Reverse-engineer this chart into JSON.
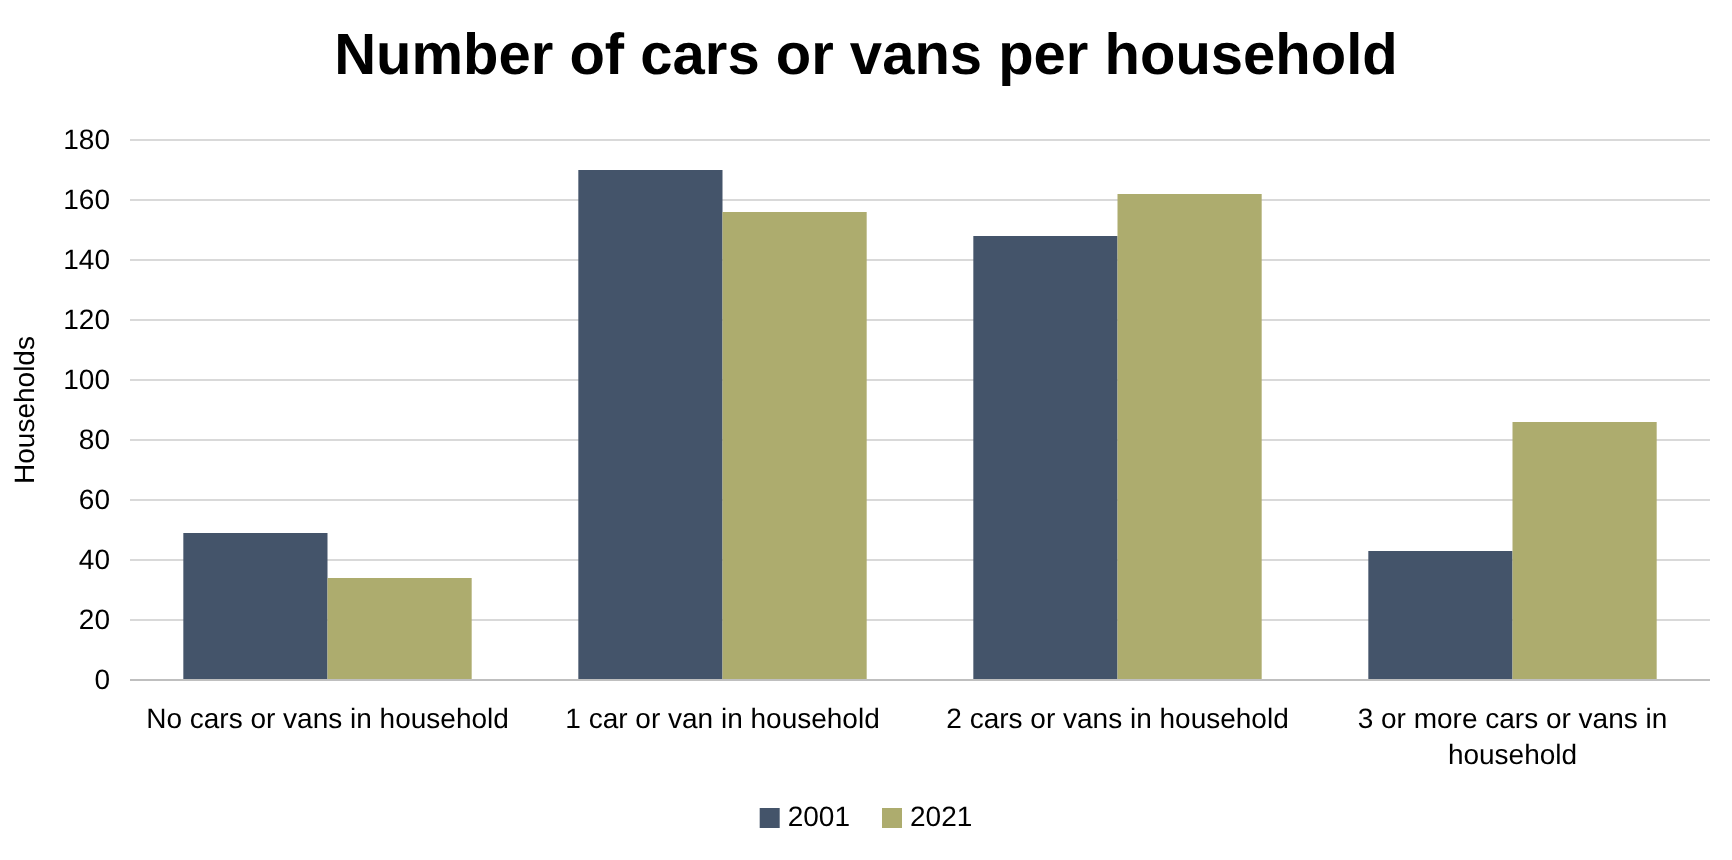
{
  "chart_data": {
    "type": "bar",
    "title": "Number of cars or vans per household",
    "ylabel": "Households",
    "categories": [
      "No cars or vans in household",
      "1 car or van in household",
      "2 cars or vans in household",
      "3 or more cars or vans in household"
    ],
    "series": [
      {
        "name": "2001",
        "color": "#44546a",
        "values": [
          49,
          170,
          148,
          43
        ]
      },
      {
        "name": "2021",
        "color": "#adac6e",
        "values": [
          34,
          156,
          162,
          86
        ]
      }
    ],
    "ylim": [
      0,
      180
    ],
    "yticks": [
      0,
      20,
      40,
      60,
      80,
      100,
      120,
      140,
      160,
      180
    ],
    "grid": "y",
    "legend": "bottom"
  }
}
